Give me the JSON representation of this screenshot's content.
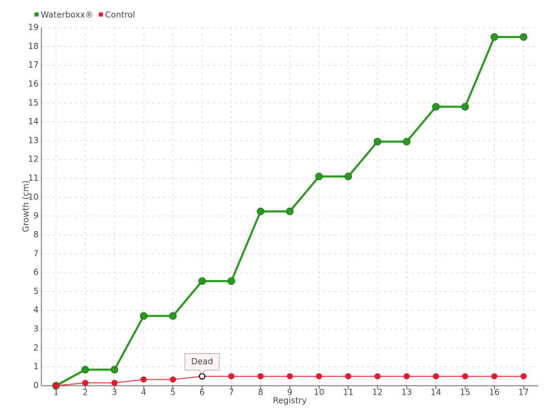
{
  "chart_data": {
    "type": "line",
    "x_label": "Registry",
    "y_label": "Growth (cm)",
    "categories": [
      "1",
      "2",
      "3",
      "4",
      "5",
      "6",
      "7",
      "8",
      "9",
      "10",
      "11",
      "12",
      "13",
      "14",
      "15",
      "16",
      "17"
    ],
    "series": [
      {
        "name": "Waterboxx®",
        "color": "#2a9a1f",
        "values": [
          0,
          0.85,
          0.85,
          3.7,
          3.7,
          5.55,
          5.55,
          9.25,
          9.25,
          11.1,
          11.1,
          12.95,
          12.95,
          14.8,
          14.8,
          18.5,
          18.5
        ]
      },
      {
        "name": "Control",
        "color": "#e8192c",
        "values": [
          0,
          0.15,
          0.15,
          0.33,
          0.33,
          0.5,
          0.5,
          0.5,
          0.5,
          0.5,
          0.5,
          0.5,
          0.5,
          0.5,
          0.5,
          0.5,
          0.5
        ],
        "annotations": [
          {
            "category": "6",
            "text": "Dead"
          }
        ]
      }
    ],
    "ylim": [
      0,
      19
    ],
    "yticks": [
      0,
      1,
      2,
      3,
      4,
      5,
      6,
      7,
      8,
      9,
      10,
      11,
      12,
      13,
      14,
      15,
      16,
      17,
      18,
      19
    ],
    "grid": true,
    "legend": "top-left"
  }
}
